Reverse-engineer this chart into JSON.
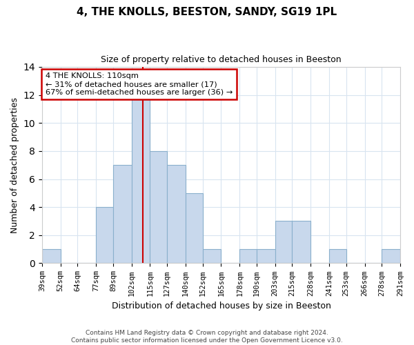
{
  "title": "4, THE KNOLLS, BEESTON, SANDY, SG19 1PL",
  "subtitle": "Size of property relative to detached houses in Beeston",
  "xlabel": "Distribution of detached houses by size in Beeston",
  "ylabel": "Number of detached properties",
  "footer_line1": "Contains HM Land Registry data © Crown copyright and database right 2024.",
  "footer_line2": "Contains public sector information licensed under the Open Government Licence v3.0.",
  "bins": [
    39,
    52,
    64,
    77,
    89,
    102,
    115,
    127,
    140,
    152,
    165,
    178,
    190,
    203,
    215,
    228,
    241,
    253,
    266,
    278,
    291
  ],
  "bin_labels": [
    "39sqm",
    "52sqm",
    "64sqm",
    "77sqm",
    "89sqm",
    "102sqm",
    "115sqm",
    "127sqm",
    "140sqm",
    "152sqm",
    "165sqm",
    "178sqm",
    "190sqm",
    "203sqm",
    "215sqm",
    "228sqm",
    "241sqm",
    "253sqm",
    "266sqm",
    "278sqm",
    "291sqm"
  ],
  "counts": [
    1,
    0,
    0,
    4,
    7,
    12,
    8,
    7,
    5,
    1,
    0,
    1,
    1,
    3,
    3,
    0,
    1,
    0,
    0,
    1
  ],
  "bar_color": "#c8d8ec",
  "bar_edge_color": "#8ab0cc",
  "red_line_x": 110,
  "annotation_text_line1": "4 THE KNOLLS: 110sqm",
  "annotation_text_line2": "← 31% of detached houses are smaller (17)",
  "annotation_text_line3": "67% of semi-detached houses are larger (36) →",
  "annotation_box_edge_color": "#cc0000",
  "red_line_color": "#cc0000",
  "ylim": [
    0,
    14
  ],
  "yticks": [
    0,
    2,
    4,
    6,
    8,
    10,
    12,
    14
  ],
  "background_color": "#ffffff",
  "grid_color": "#d8e4f0",
  "title_fontsize": 11,
  "subtitle_fontsize": 9
}
